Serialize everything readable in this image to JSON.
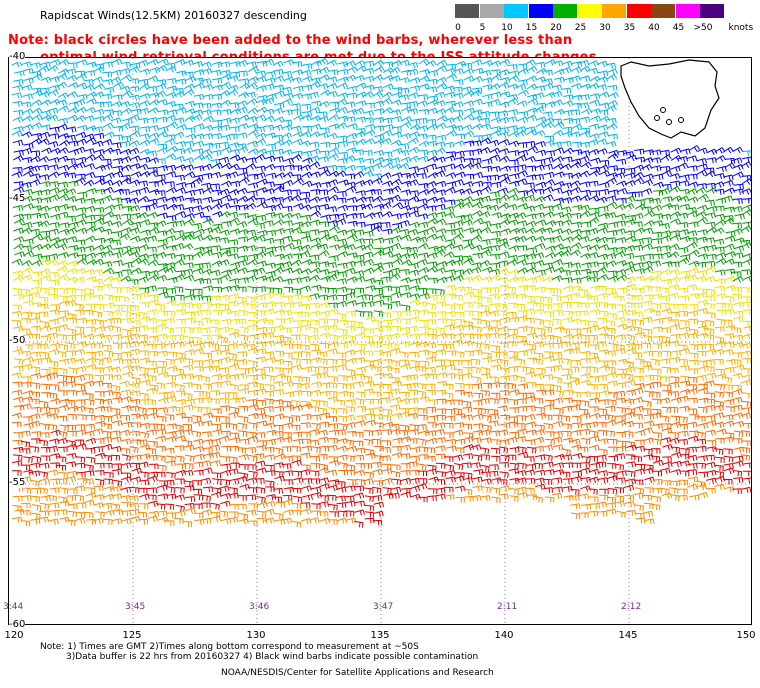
{
  "header": {
    "title": "Rapidscat Winds(12.5KM) 20160327 descending",
    "note_line1": "Note: black circles have been added to the wind barbs, wherever less than",
    "note_line2": "optimal wind retrieval conditions are met due to the ISS attitude changes."
  },
  "legend": {
    "unit_label": "knots",
    "entries": [
      {
        "label": "0",
        "color": "#555555"
      },
      {
        "label": "5",
        "color": "#a8a8a8"
      },
      {
        "label": "10",
        "color": "#00c8ff"
      },
      {
        "label": "15",
        "color": "#0000ff"
      },
      {
        "label": "20",
        "color": "#00b000"
      },
      {
        "label": "25",
        "color": "#ffff00"
      },
      {
        "label": "30",
        "color": "#ffa500"
      },
      {
        "label": "35",
        "color": "#ff0000"
      },
      {
        "label": "40",
        "color": "#8b4513"
      },
      {
        "label": "45",
        "color": "#ff00ff"
      },
      {
        "label": ">50",
        "color": "#4b0082"
      }
    ]
  },
  "axes": {
    "lat_labels": [
      "-40",
      "-45",
      "-50",
      "-55",
      "-60"
    ],
    "lon_labels": [
      "120",
      "125",
      "130",
      "135",
      "140",
      "145",
      "150"
    ],
    "lat_range": [
      -60,
      -40
    ],
    "lon_range": [
      120,
      150
    ]
  },
  "pass_times": [
    "3:44",
    "3:45",
    "3:46",
    "3:47",
    "2:11",
    "2:12"
  ],
  "footnotes": {
    "line1": "Note: 1) Times are GMT 2)Times along bottom correspond to measurement at ~50S",
    "line2": "3)Data buffer is 22 hrs from 20160327 4) Black wind barbs indicate possible contamination"
  },
  "credit": "NOAA/NESDIS/Center for Satellite Applications and Research",
  "wind_field": {
    "description_bands": [
      {
        "lat_from": -40,
        "lat_to": -44,
        "speed_knots": "10-15",
        "color": "#00c8ff"
      },
      {
        "lat_from": -44,
        "lat_to": -46,
        "speed_knots": "15-20",
        "color": "#0000ff"
      },
      {
        "lat_from": -46,
        "lat_to": -49,
        "speed_knots": "20-25",
        "color": "#00b000"
      },
      {
        "lat_from": -49,
        "lat_to": -51,
        "speed_knots": "25-30",
        "color": "#ffff00"
      },
      {
        "lat_from": -51,
        "lat_to": -55,
        "speed_knots": "30-35",
        "color": "#ffa500"
      },
      {
        "lat_from": -55,
        "lat_to": -56,
        "speed_knots": "35-40",
        "color": "#ff0000"
      }
    ]
  },
  "landmass": "Tasmania"
}
